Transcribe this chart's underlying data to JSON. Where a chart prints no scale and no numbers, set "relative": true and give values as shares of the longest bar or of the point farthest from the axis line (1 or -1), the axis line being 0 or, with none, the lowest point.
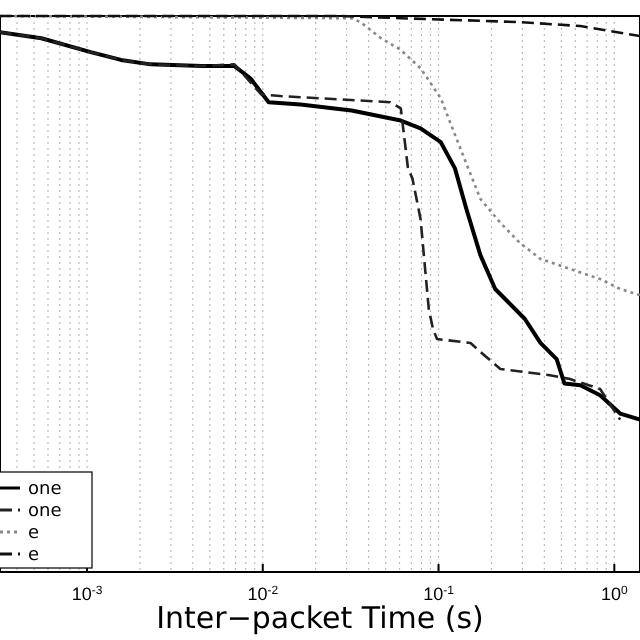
{
  "chart_data": {
    "type": "line",
    "relative": true,
    "log": "x",
    "grid": "x",
    "legend": "bottom left",
    "xlabel": "Inter−packet Time (s)",
    "xlim": [
      0.00032,
      1.4
    ],
    "xticks": [
      {
        "value": 0.001,
        "label": "10$^{-3}$"
      },
      {
        "value": 0.01,
        "label": "10$^{-2}$"
      },
      {
        "value": 0.1,
        "label": "10$^{-1}$"
      },
      {
        "value": 1,
        "label": "10$^{0}$"
      }
    ],
    "series": [
      {
        "name": "one",
        "color": "#000000",
        "line_style": "solid",
        "x": [
          0.00032,
          0.00055,
          0.00105,
          0.00156,
          0.0023,
          0.0045,
          0.0069,
          0.0085,
          0.0108,
          0.0164,
          0.032,
          0.061,
          0.079,
          0.103,
          0.124,
          0.144,
          0.173,
          0.21,
          0.31,
          0.38,
          0.47,
          0.52,
          0.64,
          0.83,
          1.08,
          1.4
        ],
        "values": [
          0.971,
          0.96,
          0.935,
          0.921,
          0.913,
          0.91,
          0.91,
          0.888,
          0.845,
          0.841,
          0.83,
          0.812,
          0.798,
          0.773,
          0.726,
          0.653,
          0.57,
          0.509,
          0.455,
          0.412,
          0.383,
          0.339,
          0.336,
          0.318,
          0.285,
          0.274
        ]
      },
      {
        "name": "one",
        "color": "#222222",
        "line_style": "dashed",
        "x": [
          0.00032,
          0.00055,
          0.00105,
          0.00156,
          0.0023,
          0.0045,
          0.0069,
          0.0098,
          0.0126,
          0.053,
          0.061,
          0.067,
          0.071,
          0.079,
          0.088,
          0.093,
          0.098,
          0.152,
          0.182,
          0.225,
          0.43,
          0.56,
          0.83,
          1.08
        ],
        "values": [
          0.971,
          0.96,
          0.935,
          0.921,
          0.913,
          0.91,
          0.913,
          0.859,
          0.856,
          0.845,
          0.834,
          0.726,
          0.708,
          0.635,
          0.473,
          0.437,
          0.419,
          0.412,
          0.39,
          0.365,
          0.354,
          0.347,
          0.329,
          0.274
        ]
      },
      {
        "name": "e",
        "color": "#888888",
        "line_style": "dotted",
        "x": [
          0.00032,
          0.032,
          0.036,
          0.047,
          0.061,
          0.079,
          0.103,
          0.133,
          0.173,
          0.225,
          0.29,
          0.38,
          0.56,
          0.83,
          1.08,
          1.4
        ],
        "values": [
          1,
          0.996,
          0.989,
          0.96,
          0.939,
          0.906,
          0.852,
          0.762,
          0.671,
          0.628,
          0.592,
          0.563,
          0.545,
          0.527,
          0.509,
          0.498
        ]
      },
      {
        "name": "e",
        "color": "#111111",
        "line_style": "dashed",
        "x": [
          0.00032,
          0.028,
          0.061,
          0.29,
          0.64,
          1.4
        ],
        "values": [
          1,
          1,
          0.996,
          0.989,
          0.982,
          0.964
        ]
      }
    ]
  }
}
